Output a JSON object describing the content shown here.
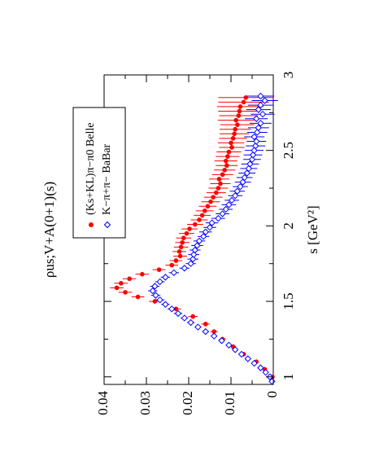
{
  "chart_data": {
    "type": "scatter",
    "orientation": "rotated-90-ccw",
    "xlabel": "s [GeV²]",
    "ylabel": "ρus;V+A(0+1)(s)",
    "xlim": [
      0.95,
      3.0
    ],
    "ylim": [
      0,
      0.04
    ],
    "x_ticks": [
      "1",
      "1.5",
      "2",
      "2.5",
      "3"
    ],
    "y_ticks": [
      "0",
      "0.01",
      "0.02",
      "0.03",
      "0.04"
    ],
    "grid": false,
    "legend_position": "top-left",
    "series": [
      {
        "name": "(Ks+KL)π−π0 Belle",
        "color": "#ff0000",
        "marker": "filled-circle",
        "x": [
          1.0,
          1.05,
          1.1,
          1.15,
          1.2,
          1.25,
          1.3,
          1.35,
          1.4,
          1.45,
          1.5,
          1.53,
          1.56,
          1.59,
          1.62,
          1.65,
          1.68,
          1.71,
          1.74,
          1.77,
          1.8,
          1.83,
          1.86,
          1.89,
          1.92,
          1.95,
          1.98,
          2.01,
          2.04,
          2.07,
          2.1,
          2.13,
          2.16,
          2.19,
          2.22,
          2.25,
          2.28,
          2.31,
          2.34,
          2.37,
          2.4,
          2.43,
          2.46,
          2.49,
          2.52,
          2.55,
          2.58,
          2.61,
          2.64,
          2.67,
          2.7,
          2.73,
          2.76,
          2.79,
          2.82,
          2.85
        ],
        "y": [
          0.0002,
          0.002,
          0.004,
          0.007,
          0.0095,
          0.012,
          0.014,
          0.016,
          0.019,
          0.023,
          0.028,
          0.032,
          0.035,
          0.037,
          0.036,
          0.034,
          0.031,
          0.027,
          0.024,
          0.023,
          0.022,
          0.0222,
          0.0218,
          0.0215,
          0.0212,
          0.0205,
          0.0198,
          0.0185,
          0.0175,
          0.0168,
          0.0162,
          0.0155,
          0.0148,
          0.0142,
          0.0135,
          0.013,
          0.0125,
          0.0128,
          0.012,
          0.0115,
          0.011,
          0.0112,
          0.0108,
          0.0105,
          0.0098,
          0.01,
          0.0095,
          0.0092,
          0.009,
          0.0085,
          0.0088,
          0.0082,
          0.008,
          0.0078,
          0.007,
          0.0065
        ],
        "yerr": [
          0.0003,
          0.0004,
          0.0005,
          0.0006,
          0.0007,
          0.0008,
          0.0009,
          0.001,
          0.0011,
          0.0012,
          0.0014,
          0.0015,
          0.0016,
          0.0016,
          0.0016,
          0.0016,
          0.0016,
          0.0015,
          0.0015,
          0.0015,
          0.0016,
          0.0016,
          0.0017,
          0.0017,
          0.0018,
          0.0018,
          0.0019,
          0.0019,
          0.002,
          0.002,
          0.0021,
          0.0021,
          0.0022,
          0.0022,
          0.0023,
          0.0023,
          0.0024,
          0.0024,
          0.0025,
          0.0025,
          0.0026,
          0.0027,
          0.0028,
          0.0029,
          0.003,
          0.0031,
          0.0033,
          0.0035,
          0.0037,
          0.004,
          0.0043,
          0.0046,
          0.005,
          0.0055,
          0.006,
          0.0065
        ],
        "xerr": 0.015
      },
      {
        "name": "K−π+π− BaBar",
        "color": "#0000ff",
        "marker": "open-diamond",
        "x": [
          0.97,
          1.0,
          1.03,
          1.06,
          1.09,
          1.12,
          1.15,
          1.18,
          1.21,
          1.24,
          1.27,
          1.3,
          1.33,
          1.36,
          1.39,
          1.42,
          1.45,
          1.48,
          1.51,
          1.54,
          1.57,
          1.6,
          1.63,
          1.66,
          1.69,
          1.72,
          1.75,
          1.78,
          1.81,
          1.84,
          1.87,
          1.9,
          1.93,
          1.96,
          1.99,
          2.02,
          2.05,
          2.08,
          2.11,
          2.14,
          2.17,
          2.2,
          2.23,
          2.26,
          2.29,
          2.32,
          2.35,
          2.38,
          2.41,
          2.44,
          2.47,
          2.5,
          2.53,
          2.56,
          2.59,
          2.62,
          2.65,
          2.68,
          2.71,
          2.74,
          2.77,
          2.8,
          2.83,
          2.86
        ],
        "y": [
          0.0003,
          0.0008,
          0.0018,
          0.003,
          0.0045,
          0.006,
          0.0075,
          0.009,
          0.0105,
          0.0122,
          0.014,
          0.016,
          0.0178,
          0.0195,
          0.021,
          0.0225,
          0.024,
          0.0255,
          0.0268,
          0.0278,
          0.0285,
          0.028,
          0.0268,
          0.0255,
          0.0235,
          0.021,
          0.0195,
          0.019,
          0.0188,
          0.0185,
          0.018,
          0.0175,
          0.0165,
          0.016,
          0.015,
          0.0145,
          0.013,
          0.012,
          0.0112,
          0.0105,
          0.0098,
          0.009,
          0.0085,
          0.0078,
          0.0072,
          0.0068,
          0.0062,
          0.0058,
          0.0055,
          0.005,
          0.0048,
          0.0045,
          0.0042,
          0.004,
          0.0045,
          0.0038,
          0.0035,
          0.003,
          0.004,
          0.0025,
          0.0035,
          0.003,
          0.002,
          0.003
        ],
        "yerr": [
          0.0003,
          0.0003,
          0.0003,
          0.0004,
          0.0004,
          0.0005,
          0.0005,
          0.0006,
          0.0006,
          0.0007,
          0.0007,
          0.0008,
          0.0008,
          0.0009,
          0.0009,
          0.001,
          0.001,
          0.001,
          0.0011,
          0.0011,
          0.0011,
          0.0011,
          0.0011,
          0.0011,
          0.0012,
          0.0012,
          0.0012,
          0.0013,
          0.0013,
          0.0013,
          0.0014,
          0.0014,
          0.0014,
          0.0015,
          0.0015,
          0.0015,
          0.0016,
          0.0016,
          0.0016,
          0.0017,
          0.0017,
          0.0017,
          0.0018,
          0.0018,
          0.0019,
          0.0019,
          0.002,
          0.002,
          0.0021,
          0.0021,
          0.0022,
          0.0022,
          0.0023,
          0.0023,
          0.0024,
          0.0024,
          0.0025,
          0.0026,
          0.0027,
          0.0028,
          0.0029,
          0.003,
          0.0031,
          0.0032
        ],
        "xerr": 0.015
      }
    ]
  }
}
